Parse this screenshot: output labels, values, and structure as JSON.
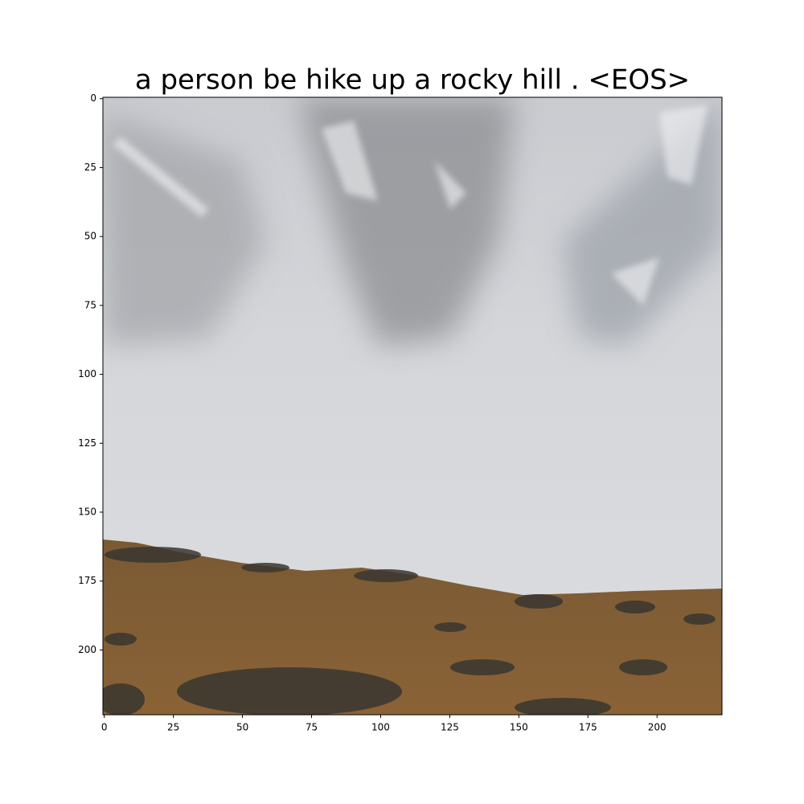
{
  "chart_data": {
    "type": "image",
    "title": "a person be hike up a rocky hill . <EOS>",
    "xlim": [
      -0.5,
      223.5
    ],
    "ylim": [
      223.5,
      -0.5
    ],
    "xticks": [
      0,
      25,
      50,
      75,
      100,
      125,
      150,
      175,
      200
    ],
    "yticks": [
      0,
      25,
      50,
      75,
      100,
      125,
      150,
      175,
      200
    ]
  }
}
